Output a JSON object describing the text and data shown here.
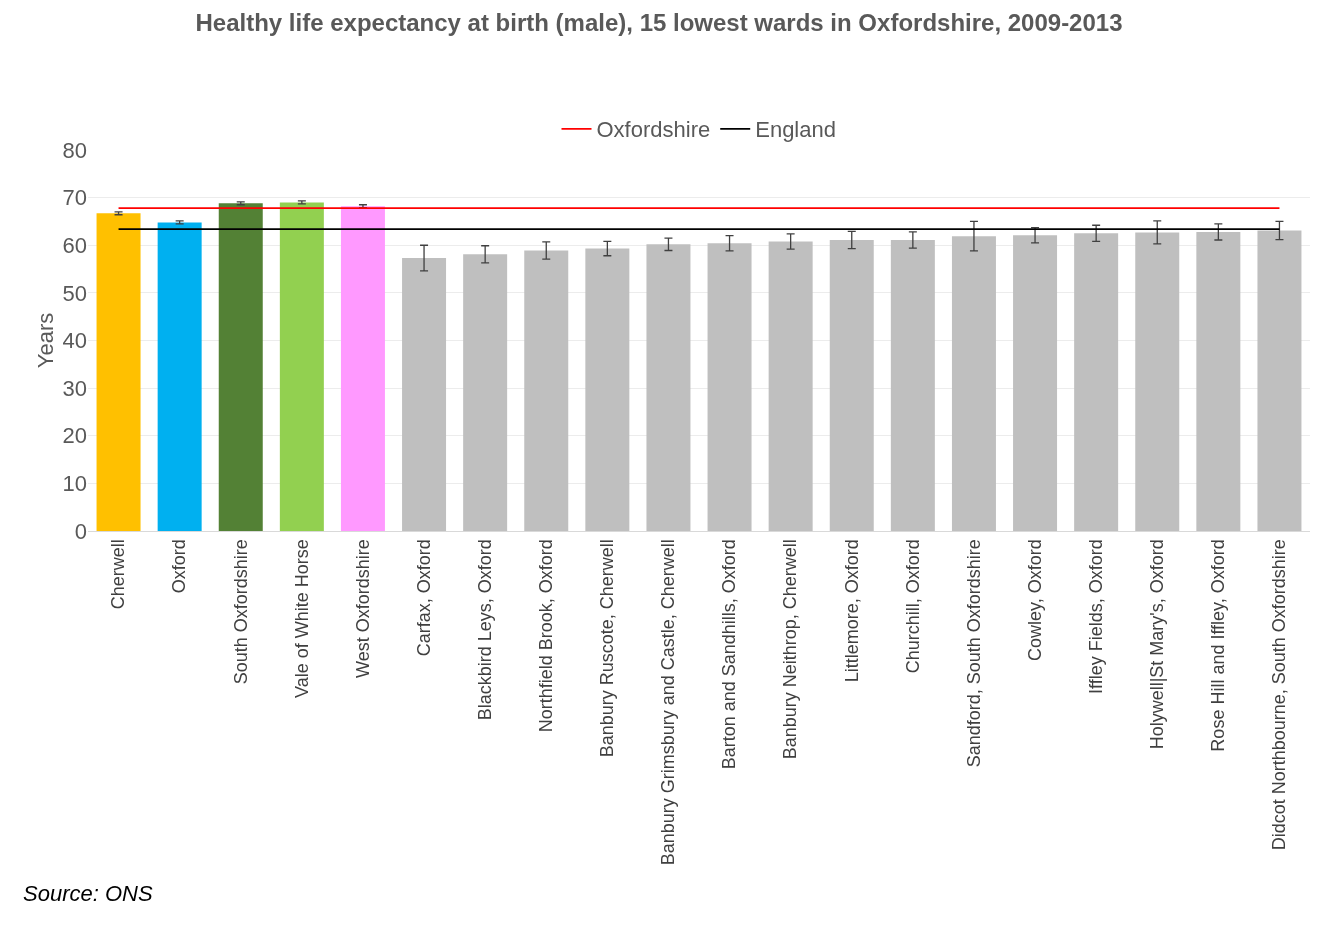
{
  "chart_data": {
    "type": "bar",
    "title": "Healthy life expectancy at birth (male), 15 lowest wards in Oxfordshire, 2009-2013",
    "ylabel": "Years",
    "categories": [
      "Cherwell",
      "Oxford",
      "South Oxfordshire",
      "Vale of White Horse",
      "West Oxfordshire",
      "Carfax, Oxford",
      "Blackbird Leys, Oxford",
      "Northfield Brook, Oxford",
      "Banbury Ruscote, Cherwell",
      "Banbury Grimsbury and Castle, Cherwell",
      "Barton and Sandhills, Oxford",
      "Banbury Neithrop, Cherwell",
      "Littlemore, Oxford",
      "Churchill, Oxford",
      "Sandford, South Oxfordshire",
      "Cowley, Oxford",
      "Iffley Fields, Oxford",
      "Holywell|St Mary's, Oxford",
      "Rose Hill and Iffley, Oxford",
      "Didcot Northbourne, South Oxfordshire"
    ],
    "series": [
      {
        "values": [
          66.7,
          64.8,
          68.8,
          69.0,
          68.2,
          57.3,
          58.1,
          58.9,
          59.3,
          60.2,
          60.4,
          60.8,
          61.1,
          61.1,
          61.9,
          62.1,
          62.5,
          62.7,
          62.8,
          63.1
        ],
        "colors": [
          "#ffc000",
          "#00b0f0",
          "#538135",
          "#92d050",
          "#ff99ff",
          "#bfbfbf",
          "#bfbfbf",
          "#bfbfbf",
          "#bfbfbf",
          "#bfbfbf",
          "#bfbfbf",
          "#bfbfbf",
          "#bfbfbf",
          "#bfbfbf",
          "#bfbfbf",
          "#bfbfbf",
          "#bfbfbf",
          "#bfbfbf",
          "#bfbfbf",
          "#bfbfbf"
        ],
        "errors": [
          0.3,
          0.3,
          0.3,
          0.3,
          0.3,
          2.7,
          1.8,
          1.8,
          1.5,
          1.3,
          1.6,
          1.6,
          1.8,
          1.7,
          3.1,
          1.6,
          1.7,
          2.4,
          1.7,
          1.9
        ]
      },
      {
        "type": "line",
        "name": "Oxfordshire",
        "color": "#ff0000",
        "values": [
          67.8,
          67.8,
          67.8,
          67.8,
          67.8,
          67.8,
          67.8,
          67.8,
          67.8,
          67.8,
          67.8,
          67.8,
          67.8,
          67.8,
          67.8,
          67.8,
          67.8,
          67.8,
          67.8,
          67.8
        ]
      },
      {
        "type": "line",
        "name": "England",
        "color": "#000000",
        "values": [
          63.4,
          63.4,
          63.4,
          63.4,
          63.4,
          63.4,
          63.4,
          63.4,
          63.4,
          63.4,
          63.4,
          63.4,
          63.4,
          63.4,
          63.4,
          63.4,
          63.4,
          63.4,
          63.4,
          63.4
        ]
      }
    ],
    "ylim": [
      0,
      80
    ],
    "yticks": [
      0,
      10,
      20,
      30,
      40,
      50,
      60,
      70,
      80
    ],
    "grid": "y",
    "legend": "top",
    "marker": "none",
    "line_style": "solid",
    "annotations": [
      "Source: ONS"
    ]
  }
}
